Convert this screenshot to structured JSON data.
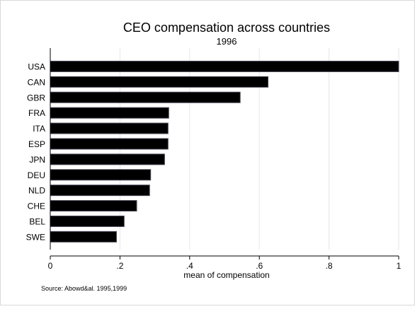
{
  "chart_data": {
    "type": "bar",
    "orientation": "horizontal",
    "title": "CEO compensation across countries",
    "subtitle": "1996",
    "xlabel": "mean of compensation",
    "source_note": "Source: Abowd&al. 1995,1999",
    "categories": [
      "USA",
      "CAN",
      "GBR",
      "FRA",
      "ITA",
      "ESP",
      "JPN",
      "DEU",
      "NLD",
      "CHE",
      "BEL",
      "SWE"
    ],
    "values": [
      1.0,
      0.625,
      0.545,
      0.34,
      0.338,
      0.338,
      0.328,
      0.288,
      0.285,
      0.248,
      0.212,
      0.19
    ],
    "xlim": [
      0,
      1.0
    ],
    "xticks": [
      0,
      0.2,
      0.4,
      0.6,
      0.8,
      1
    ],
    "xtick_labels": [
      "0",
      ".2",
      ".4",
      ".6",
      ".8",
      "1"
    ],
    "grid": "vertical lines at x ticks",
    "colors": {
      "bar_fill": "#000000",
      "bar_edge": "#4a4a5a",
      "grid": "#e6e6e6",
      "frame": "#000000"
    }
  }
}
